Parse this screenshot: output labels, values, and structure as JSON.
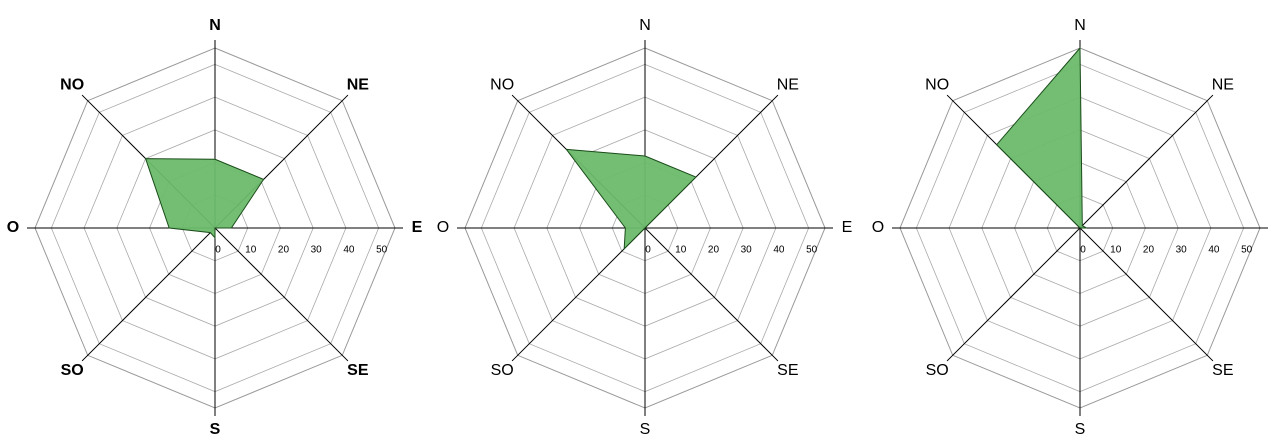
{
  "chart_data": [
    {
      "type": "radar",
      "categories": [
        "N",
        "NE",
        "E",
        "SE",
        "S",
        "SO",
        "O",
        "NO"
      ],
      "values": [
        21,
        21,
        5,
        0,
        3,
        2,
        14,
        30
      ],
      "rlim": [
        0,
        55
      ],
      "rticks": [
        0,
        10,
        20,
        30,
        40,
        50
      ],
      "color": "#6cbb6c"
    },
    {
      "type": "radar",
      "categories": [
        "N",
        "NE",
        "E",
        "SE",
        "S",
        "SO",
        "O",
        "NO"
      ],
      "values": [
        22,
        22,
        0,
        0,
        0,
        9,
        6,
        34
      ],
      "rlim": [
        0,
        55
      ],
      "rticks": [
        0,
        10,
        20,
        30,
        40,
        50
      ],
      "color": "#6cbb6c"
    },
    {
      "type": "radar",
      "categories": [
        "N",
        "NE",
        "E",
        "SE",
        "S",
        "SO",
        "O",
        "NO"
      ],
      "values": [
        55,
        1,
        2,
        0,
        0,
        0,
        0,
        36
      ],
      "rlim": [
        0,
        55
      ],
      "rticks": [
        0,
        10,
        20,
        30,
        40,
        50
      ],
      "color": "#6cbb6c"
    }
  ]
}
